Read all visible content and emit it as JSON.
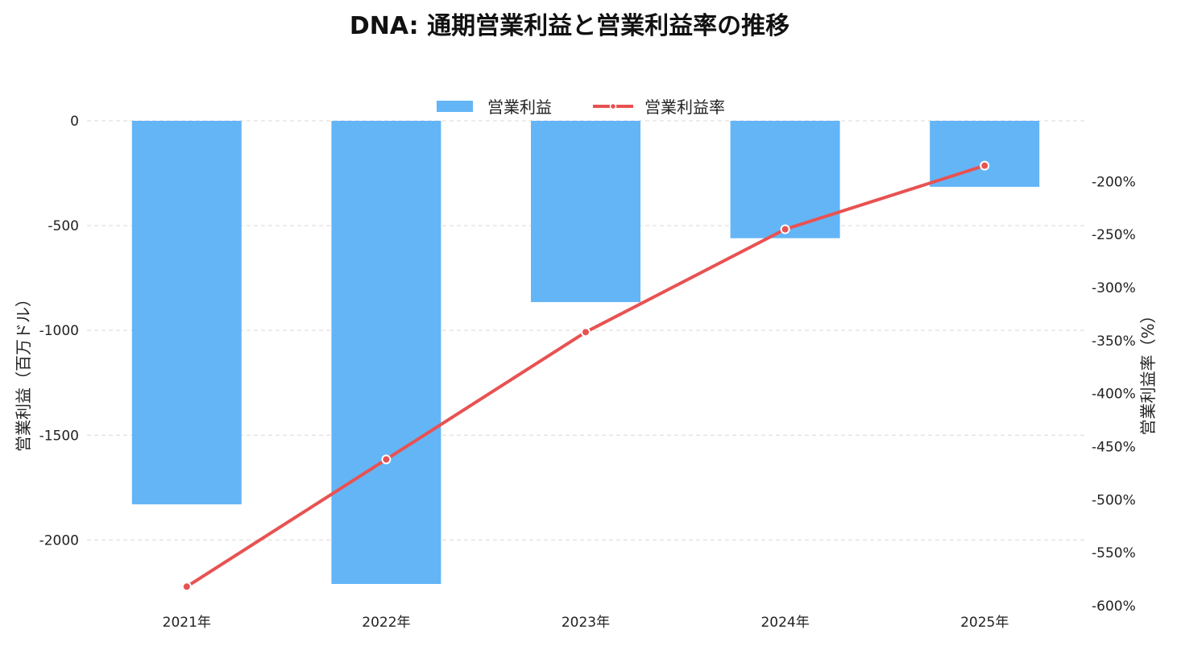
{
  "chart_data": {
    "type": "bar+line",
    "title": "DNA: 通期営業利益と営業利益率の推移",
    "categories": [
      "2021年",
      "2022年",
      "2023年",
      "2024年",
      "2025年"
    ],
    "series": [
      {
        "name": "営業利益",
        "type": "bar",
        "axis": "left",
        "values": [
          -1830,
          -2210,
          -865,
          -560,
          -315
        ],
        "color": "#64b5f6"
      },
      {
        "name": "営業利益率",
        "type": "line",
        "axis": "right",
        "values": [
          -582,
          -462,
          -342,
          -245,
          -185
        ],
        "color": "#e85252"
      }
    ],
    "left_axis": {
      "label": "営業利益（百万ドル）",
      "ylim": [
        -2210,
        0
      ],
      "ticks": [
        0,
        -500,
        -1000,
        -1500,
        -2000
      ],
      "tick_labels": [
        "0",
        "-500",
        "-1000",
        "-1500",
        "-2000"
      ]
    },
    "right_axis": {
      "label": "営業利益率（%）",
      "ylim": [
        -600,
        -164
      ],
      "ticks": [
        -200,
        -250,
        -300,
        -350,
        -400,
        -450,
        -500,
        -550,
        -600
      ],
      "tick_labels": [
        "-200%",
        "-250%",
        "-300%",
        "-350%",
        "-400%",
        "-450%",
        "-500%",
        "-550%",
        "-600%"
      ]
    },
    "grid": true,
    "legend_position": "top-center"
  }
}
